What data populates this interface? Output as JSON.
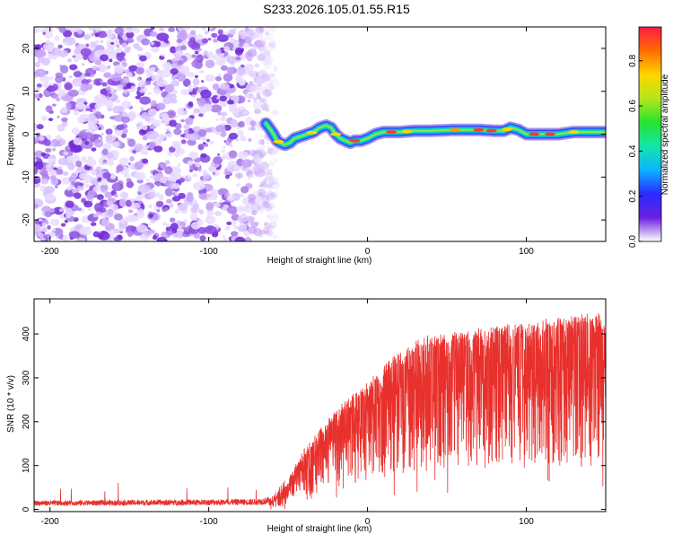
{
  "title": "S233.2026.105.01.55.R15",
  "chart_data": [
    {
      "type": "heatmap",
      "xlabel": "Height of straight line (km)",
      "ylabel": "Frequency (Hz)",
      "xlim": [
        -210,
        150
      ],
      "ylim": [
        -25,
        25
      ],
      "xticks": [
        -200,
        -100,
        0,
        100
      ],
      "xtick_labels": [
        "-200",
        "-100",
        "0",
        "100"
      ],
      "yticks": [
        -20,
        -10,
        0,
        10,
        20
      ],
      "ytick_labels": [
        "-20",
        "-10",
        "0",
        "10",
        "20"
      ],
      "noise_region_x": [
        -210,
        -62
      ],
      "signal_trace": {
        "x": [
          -64,
          -60,
          -57,
          -55,
          -52,
          -49,
          -46,
          -42,
          -38,
          -34,
          -30,
          -26,
          -23,
          -20,
          -17,
          -14,
          -11,
          -8,
          -4,
          0,
          5,
          10,
          20,
          30,
          40,
          55,
          70,
          80,
          86,
          90,
          95,
          100,
          110,
          120,
          130,
          150
        ],
        "y": [
          2.5,
          0.5,
          -1.5,
          -2.0,
          -2.5,
          -2.0,
          -1.0,
          -0.5,
          0.0,
          0.5,
          1.5,
          2.0,
          1.5,
          0.0,
          -1.0,
          -1.5,
          -2.0,
          -1.5,
          -1.5,
          -1.0,
          0.0,
          0.5,
          0.5,
          0.8,
          0.8,
          1.0,
          1.0,
          0.8,
          0.8,
          1.5,
          1.0,
          0.0,
          0.0,
          0.0,
          0.5,
          0.5
        ]
      },
      "colorbar": {
        "label": "Normalized spectral amplitude",
        "range": [
          0,
          0.95
        ],
        "ticks": [
          0.0,
          0.2,
          0.4,
          0.6,
          0.8
        ],
        "tick_labels": [
          "0.0",
          "0.2",
          "0.4",
          "0.6",
          "0.8"
        ],
        "colors": [
          "#ffffff",
          "#6a1fe0",
          "#2a2cff",
          "#0ab5ff",
          "#13e6a8",
          "#27e32d",
          "#b5e619",
          "#ffd500",
          "#ff6b00",
          "#ff1b47"
        ]
      }
    },
    {
      "type": "line",
      "xlabel": "Height of straight line (km)",
      "ylabel": "SNR (10 * v/v)",
      "xlim": [
        -210,
        150
      ],
      "ylim": [
        -5,
        480
      ],
      "xticks": [
        -200,
        -100,
        0,
        100
      ],
      "xtick_labels": [
        "-200",
        "-100",
        "0",
        "100"
      ],
      "yticks": [
        0,
        100,
        200,
        300,
        400
      ],
      "ytick_labels": [
        "0",
        "100",
        "200",
        "300",
        "400"
      ],
      "series": [
        {
          "name": "SNR",
          "color": "#e8302c",
          "envelope_x": [
            -210,
            -150,
            -100,
            -70,
            -60,
            -50,
            -40,
            -30,
            -20,
            -10,
            0,
            10,
            20,
            30,
            40,
            50,
            60,
            70,
            80,
            90,
            100,
            110,
            120,
            130,
            140,
            150
          ],
          "envelope_y": [
            15,
            16,
            17,
            18,
            22,
            55,
            110,
            150,
            185,
            215,
            240,
            270,
            300,
            320,
            330,
            335,
            340,
            345,
            350,
            352,
            355,
            360,
            365,
            370,
            372,
            375
          ]
        }
      ]
    }
  ]
}
